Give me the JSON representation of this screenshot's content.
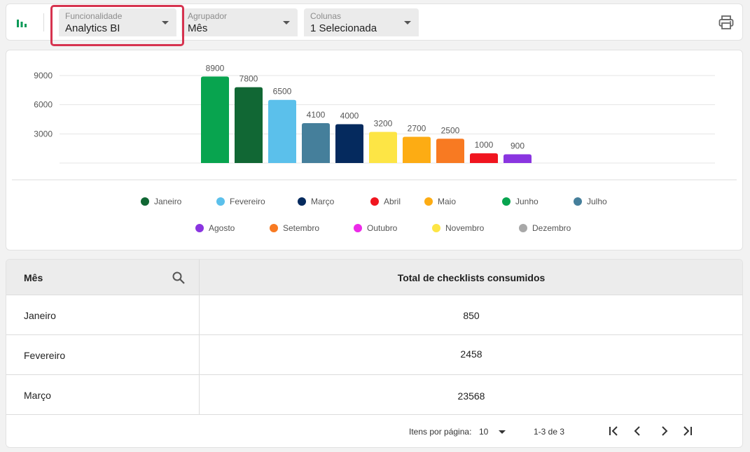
{
  "toolbar": {
    "selects": [
      {
        "label": "Funcionalidade",
        "value": "Analytics BI"
      },
      {
        "label": "Agrupador",
        "value": "Mês"
      },
      {
        "label": "Colunas",
        "value": "1 Selecionada"
      }
    ],
    "icons": {
      "left": "bar-chart-icon",
      "right": "print-icon"
    }
  },
  "chart_data": {
    "type": "bar",
    "categories": [
      "Junho",
      "Janeiro",
      "Fevereiro",
      "Julho",
      "Março",
      "Novembro",
      "Maio",
      "Setembro",
      "Abril",
      "Agosto"
    ],
    "values": [
      8900,
      7800,
      6500,
      4100,
      4000,
      3200,
      2700,
      2500,
      1000,
      900
    ],
    "colors": [
      "#08a44f",
      "#116734",
      "#5bc0eb",
      "#457f9b",
      "#052a5e",
      "#fde545",
      "#fdac13",
      "#f87a22",
      "#f0151f",
      "#8a35e0"
    ],
    "yticks": [
      3000,
      6000,
      9000
    ],
    "ylim": [
      0,
      9000
    ],
    "grid": true,
    "legend_placement": "bottom",
    "legend": [
      [
        {
          "name": "Janeiro",
          "color": "#116734"
        },
        {
          "name": "Fevereiro",
          "color": "#5bc0eb"
        },
        {
          "name": "Março",
          "color": "#052a5e"
        },
        {
          "name": "Abril",
          "color": "#f0151f"
        },
        {
          "name": "Maio",
          "color": "#fdac13"
        },
        {
          "name": "Junho",
          "color": "#08a44f"
        },
        {
          "name": "Julho",
          "color": "#457f9b"
        }
      ],
      [
        {
          "name": "Agosto",
          "color": "#8a35e0"
        },
        {
          "name": "Setembro",
          "color": "#f87a22"
        },
        {
          "name": "Outubro",
          "color": "#ec2ae8"
        },
        {
          "name": "Novembro",
          "color": "#fde545"
        },
        {
          "name": "Dezembro",
          "color": "#a8a8a8"
        }
      ]
    ]
  },
  "table": {
    "headers": [
      "Mês",
      "Total de checklists consumidos"
    ],
    "rows": [
      [
        "Janeiro",
        "850"
      ],
      [
        "Fevereiro",
        "2458"
      ],
      [
        "Março",
        "23568"
      ]
    ]
  },
  "pagination": {
    "items_per_page_label": "Itens por página:",
    "items_per_page": "10",
    "range": "1-3 de 3"
  }
}
